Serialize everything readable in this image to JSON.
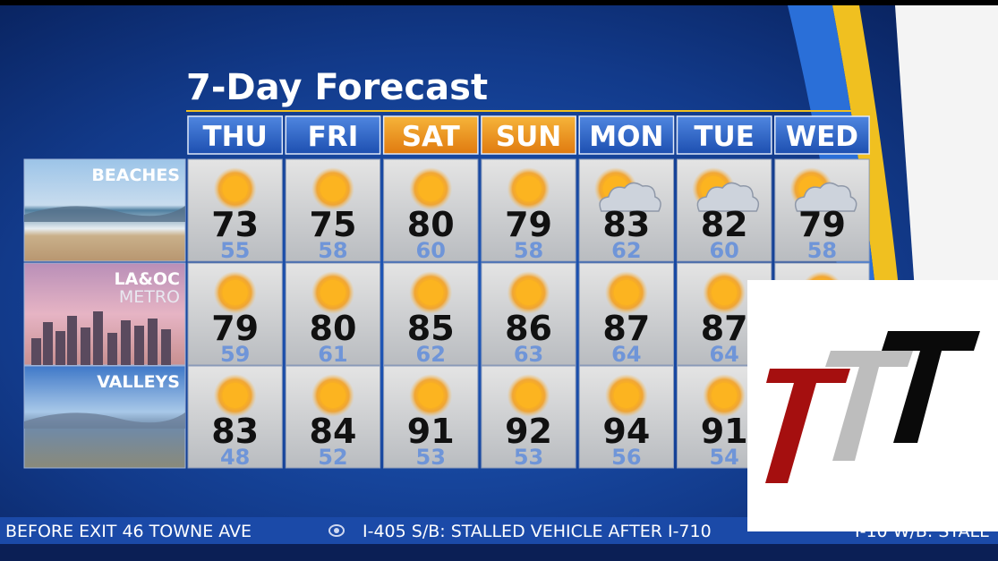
{
  "title": "7-Day Forecast",
  "days": [
    "THU",
    "FRI",
    "SAT",
    "SUN",
    "MON",
    "TUE",
    "WED"
  ],
  "rows": [
    {
      "region": [
        "BEACHES"
      ],
      "highs": [
        73,
        75,
        80,
        79,
        83,
        82,
        79
      ],
      "lows": [
        55,
        58,
        60,
        58,
        62,
        60,
        58
      ]
    },
    {
      "region": [
        "LA&OC",
        "METRO"
      ],
      "highs": [
        79,
        80,
        85,
        86,
        87,
        87,
        null
      ],
      "lows": [
        59,
        61,
        62,
        63,
        64,
        64,
        null
      ]
    },
    {
      "region": [
        "VALLEYS"
      ],
      "highs": [
        83,
        84,
        91,
        92,
        94,
        91,
        null
      ],
      "lows": [
        48,
        52,
        53,
        53,
        56,
        54,
        null
      ]
    }
  ],
  "ticker": [
    "BEFORE EXIT 46 TOWNE AVE",
    "I-405 S/B: STALLED VEHICLE AFTER I-710",
    "I-10 W/B: STALL"
  ]
}
